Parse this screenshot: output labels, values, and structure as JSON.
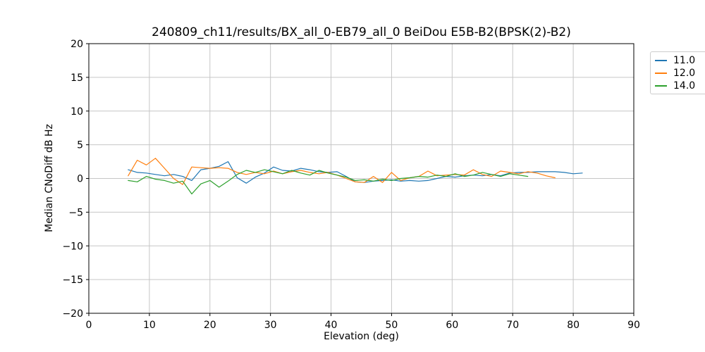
{
  "figure": {
    "background": "#ffffff",
    "text_color": "#000000"
  },
  "chart_data": {
    "type": "line",
    "title": "240809_ch11/results/BX_all_0-EB79_all_0 BeiDou E5B-B2(BPSK(2)-B2)",
    "xlabel": "Elevation (deg)",
    "ylabel": "Median CNoDiff dB Hz",
    "xlim": [
      0,
      90
    ],
    "ylim": [
      -20,
      20
    ],
    "xticks": [
      0,
      10,
      20,
      30,
      40,
      50,
      60,
      70,
      80,
      90
    ],
    "yticks": [
      -20,
      -15,
      -10,
      -5,
      0,
      5,
      10,
      15,
      20
    ],
    "grid": true,
    "grid_color": "#c6c6c6",
    "axis_color": "#000000",
    "legend_position": "outside-right-top",
    "series": [
      {
        "name": "11.0",
        "color": "#1f77b4",
        "x": [
          6.5,
          8,
          9.5,
          11,
          12.5,
          14,
          15.5,
          17,
          18.5,
          20,
          21.5,
          23,
          24.5,
          26,
          27.5,
          29,
          30.5,
          32,
          33.5,
          35,
          36.5,
          38,
          39.5,
          41,
          42.5,
          44,
          45.5,
          47,
          48.5,
          50,
          51.5,
          53,
          54.5,
          56,
          57.5,
          59,
          60.5,
          62,
          63.5,
          65,
          66.5,
          68,
          69.5,
          71,
          72.5,
          74,
          75.5,
          77,
          78.5,
          80,
          81.5
        ],
        "y": [
          1.3,
          0.9,
          0.8,
          0.6,
          0.4,
          0.6,
          0.3,
          -0.3,
          1.3,
          1.5,
          1.8,
          2.5,
          0.1,
          -0.7,
          0.2,
          0.8,
          1.7,
          1.2,
          1.1,
          1.5,
          1.3,
          1.0,
          0.9,
          1.0,
          0.3,
          -0.5,
          -0.6,
          -0.4,
          -0.3,
          -0.2,
          -0.4,
          -0.3,
          -0.4,
          -0.3,
          0.0,
          0.3,
          0.2,
          0.4,
          0.5,
          0.4,
          0.6,
          0.4,
          0.8,
          0.9,
          0.9,
          1.0,
          1.0,
          1.0,
          0.9,
          0.7,
          0.8
        ]
      },
      {
        "name": "12.0",
        "color": "#ff7f0e",
        "x": [
          6.5,
          8,
          9.5,
          11,
          12.5,
          14,
          15.5,
          17,
          18.5,
          20,
          21.5,
          23,
          24.5,
          26,
          27.5,
          29,
          30.5,
          32,
          33.5,
          35,
          36.5,
          38,
          39.5,
          41,
          42.5,
          44,
          45.5,
          47,
          48.5,
          50,
          51.5,
          53,
          54.5,
          56,
          57.5,
          59,
          60.5,
          62,
          63.5,
          65,
          66.5,
          68,
          69.5,
          71,
          72.5,
          74,
          75.5,
          77
        ],
        "y": [
          0.4,
          2.7,
          2.0,
          3.0,
          1.5,
          0.0,
          -0.9,
          1.7,
          1.6,
          1.5,
          1.6,
          1.5,
          0.9,
          0.6,
          0.9,
          0.7,
          1.1,
          0.7,
          1.0,
          1.2,
          0.9,
          0.7,
          0.9,
          0.5,
          0.0,
          -0.5,
          -0.6,
          0.3,
          -0.6,
          0.9,
          -0.3,
          0.1,
          0.3,
          1.1,
          0.4,
          0.5,
          0.6,
          0.5,
          1.3,
          0.6,
          0.3,
          1.1,
          0.9,
          0.7,
          1.0,
          0.8,
          0.4,
          0.1
        ]
      },
      {
        "name": "14.0",
        "color": "#2ca02c",
        "x": [
          6.5,
          8,
          9.5,
          11,
          12.5,
          14,
          15.5,
          17,
          18.5,
          20,
          21.5,
          23,
          24.5,
          26,
          27.5,
          29,
          30.5,
          32,
          33.5,
          35,
          36.5,
          38,
          39.5,
          41,
          42.5,
          44,
          45.5,
          47,
          48.5,
          50,
          51.5,
          53,
          54.5,
          56,
          57.5,
          59,
          60.5,
          62,
          63.5,
          65,
          66.5,
          68,
          69.5,
          71,
          72.5
        ],
        "y": [
          -0.3,
          -0.5,
          0.3,
          -0.1,
          -0.3,
          -0.7,
          -0.4,
          -2.3,
          -0.8,
          -0.3,
          -1.3,
          -0.4,
          0.6,
          1.2,
          0.9,
          1.3,
          1.0,
          0.7,
          1.2,
          0.8,
          0.5,
          1.2,
          0.8,
          0.5,
          0.2,
          -0.3,
          -0.2,
          -0.4,
          -0.1,
          -0.3,
          0.0,
          0.1,
          0.3,
          0.2,
          0.5,
          0.3,
          0.7,
          0.3,
          0.5,
          0.9,
          0.6,
          0.3,
          0.7,
          0.5,
          0.3
        ]
      }
    ]
  }
}
